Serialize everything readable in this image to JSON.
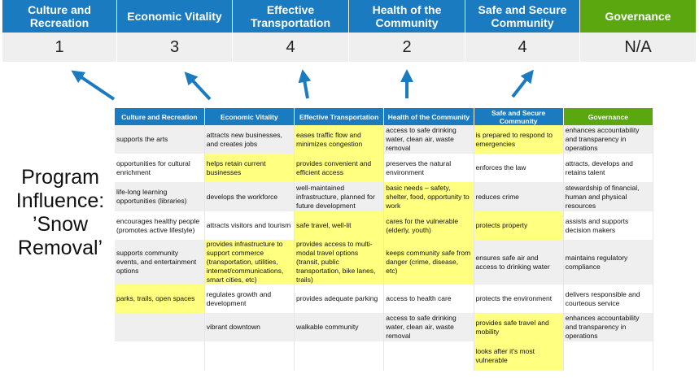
{
  "categories": [
    {
      "label": "Culture and Recreation",
      "score": "1"
    },
    {
      "label": "Economic Vitality",
      "score": "3"
    },
    {
      "label": "Effective Transportation",
      "score": "4"
    },
    {
      "label": "Health of the Community",
      "score": "2"
    },
    {
      "label": "Safe and Secure Community",
      "score": "4"
    },
    {
      "label": "Governance",
      "score": "N/A"
    }
  ],
  "side_title": "Program Influence: ’Snow Removal’",
  "colors": {
    "header_blue": "#1a7bc0",
    "governance_green": "#5aa70f",
    "highlight": "#ffff80",
    "arrow": "#1a7bc0"
  },
  "table": {
    "headers": [
      "Culture and Recreation",
      "Economic Vitality",
      "Effective Transportation",
      "Health of the Community",
      "Safe and Secure Community",
      "Governance"
    ],
    "rows": [
      [
        {
          "t": "supports the arts"
        },
        {
          "t": "attracts new businesses, and creates jobs"
        },
        {
          "t": "eases traffic flow and minimizes congestion",
          "h": true
        },
        {
          "t": "access to safe drinking water, clean air, waste removal"
        },
        {
          "t": "is prepared to respond to emergencies",
          "h": true
        },
        {
          "t": "enhances accountability and transparency in operations"
        }
      ],
      [
        {
          "t": "opportunities for cultural enrichment"
        },
        {
          "t": "helps retain current businesses",
          "h": true
        },
        {
          "t": "provides convenient and efficient access",
          "h": true
        },
        {
          "t": "preserves the natural environment"
        },
        {
          "t": "enforces the law"
        },
        {
          "t": "attracts, develops and retains talent"
        }
      ],
      [
        {
          "t": "life-long learning opportunities (libraries)"
        },
        {
          "t": "develops the workforce"
        },
        {
          "t": "well-maintained infrastructure, planned for future development"
        },
        {
          "t": "basic needs – safety, shelter, food, opportunity to work",
          "h": true
        },
        {
          "t": "reduces crime"
        },
        {
          "t": "stewardship of financial, human and physical resources"
        }
      ],
      [
        {
          "t": "encourages healthy people (promotes active lifestyle)"
        },
        {
          "t": "attracts visitors and tourism"
        },
        {
          "t": "safe travel, well-lit",
          "h": true
        },
        {
          "t": "cares for the vulnerable (elderly, youth)",
          "h": true
        },
        {
          "t": "protects property",
          "h": true
        },
        {
          "t": "assists and supports decision makers"
        }
      ],
      [
        {
          "t": "supports community events, and entertainment options"
        },
        {
          "t": "provides infrastructure to support commerce (transportation, utilities, internet/communications, smart cities, etc)",
          "h": true
        },
        {
          "t": "provides access to multi-modal travel options (transit, public transportation, bike lanes, trails)",
          "h": true
        },
        {
          "t": "keeps community safe from danger (crime, disease, etc)",
          "h": true
        },
        {
          "t": "ensures safe air and access to drinking water"
        },
        {
          "t": "maintains regulatory compliance"
        }
      ],
      [
        {
          "t": "parks, trails, open spaces",
          "h": true
        },
        {
          "t": "regulates growth and development"
        },
        {
          "t": "provides adequate parking"
        },
        {
          "t": "access to health care"
        },
        {
          "t": "protects the environment"
        },
        {
          "t": "delivers responsible and courteous service"
        }
      ],
      [
        {
          "t": ""
        },
        {
          "t": "vibrant downtown"
        },
        {
          "t": "walkable community"
        },
        {
          "t": "access to safe drinking water, clean air, waste removal"
        },
        {
          "t": "provides safe travel and mobility",
          "h": true
        },
        {
          "t": "enhances accountability and transparency in operations"
        }
      ],
      [
        {
          "t": ""
        },
        {
          "t": ""
        },
        {
          "t": ""
        },
        {
          "t": ""
        },
        {
          "t": "looks after it's most vulnerable",
          "h": true
        },
        {
          "t": ""
        }
      ]
    ]
  }
}
